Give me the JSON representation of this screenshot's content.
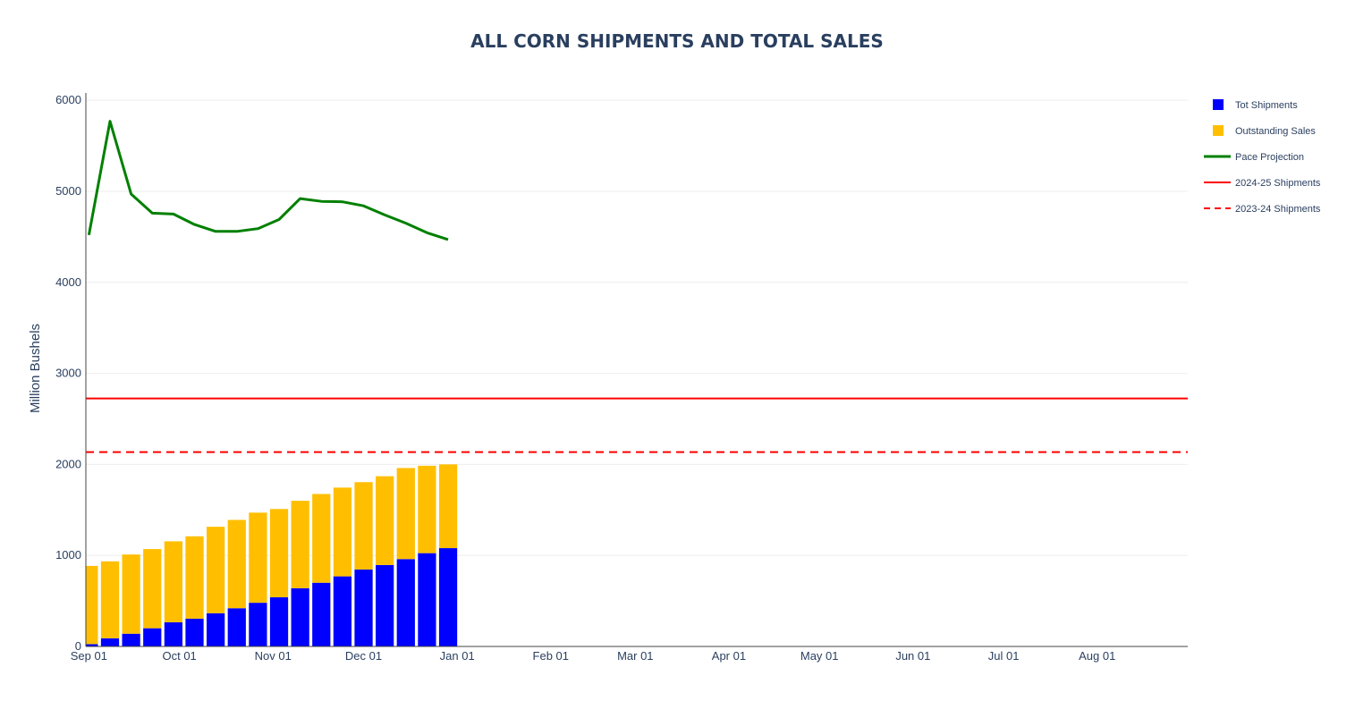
{
  "chart_data": {
    "type": "bar",
    "title": "ALL CORN SHIPMENTS AND TOTAL SALES",
    "xlabel": "",
    "ylabel": "Million Bushels",
    "ylim": [
      0,
      6080
    ],
    "xlim": [
      "2024-08-31",
      "2025-08-31"
    ],
    "grid": true,
    "legend": "top-right",
    "x_tick_labels": [
      "Sep 01",
      "Oct 01",
      "Nov 01",
      "Dec 01",
      "Jan 01",
      "Feb 01",
      "Mar 01",
      "Apr 01",
      "May 01",
      "Jun 01",
      "Jul 01",
      "Aug 01"
    ],
    "x_tick_dates": [
      "2024-09-01",
      "2024-10-01",
      "2024-11-01",
      "2024-12-01",
      "2025-01-01",
      "2025-02-01",
      "2025-03-01",
      "2025-04-01",
      "2025-05-01",
      "2025-06-01",
      "2025-07-01",
      "2025-08-01"
    ],
    "y_ticks": [
      0,
      1000,
      2000,
      3000,
      4000,
      5000,
      6000
    ],
    "x": [
      "2024-09-01",
      "2024-09-08",
      "2024-09-15",
      "2024-09-22",
      "2024-09-29",
      "2024-10-06",
      "2024-10-13",
      "2024-10-20",
      "2024-10-27",
      "2024-11-03",
      "2024-11-10",
      "2024-11-17",
      "2024-11-24",
      "2024-12-01",
      "2024-12-08",
      "2024-12-15",
      "2024-12-22",
      "2024-12-29"
    ],
    "series": [
      {
        "name": "Tot Shipments",
        "type": "bar",
        "color": "#0000ff",
        "values": [
          25,
          90,
          140,
          200,
          265,
          305,
          365,
          420,
          480,
          540,
          640,
          700,
          770,
          845,
          895,
          960,
          1025,
          1080
        ]
      },
      {
        "name": "Outstanding Sales",
        "type": "bar",
        "color": "#ffbf00",
        "values": [
          860,
          845,
          870,
          870,
          890,
          905,
          950,
          970,
          990,
          970,
          960,
          975,
          975,
          960,
          975,
          1000,
          960,
          920
        ]
      },
      {
        "name": "Pace Projection",
        "type": "line",
        "color": "#008000",
        "values": [
          4520,
          5770,
          4970,
          4760,
          4750,
          4635,
          4560,
          4560,
          4590,
          4690,
          4920,
          4890,
          4885,
          4840,
          4740,
          4650,
          4545,
          4470
        ]
      },
      {
        "name": "2024-25 Shipments",
        "type": "hline",
        "color": "#ff0000",
        "value": 2725
      },
      {
        "name": "2023-24 Shipments",
        "type": "hline-dashed",
        "color": "#ff0000",
        "value": 2135
      }
    ]
  }
}
